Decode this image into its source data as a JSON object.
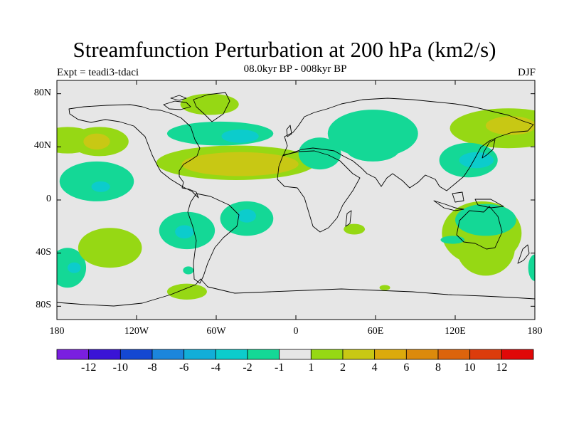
{
  "title": "Streamfunction Perturbation at 200 hPa (km2/s)",
  "subtitle": "08.0kyr BP - 008kyr BP",
  "expt": "Expt = teadi3-tdaci",
  "season": "DJF",
  "map": {
    "lon_range": [
      -180,
      180
    ],
    "lat_range": [
      -90,
      90
    ],
    "ocean_color": "#e6e6e6",
    "coast_color": "#000000",
    "lat_labels": [
      {
        "lat": 80,
        "text": "80N"
      },
      {
        "lat": 40,
        "text": "40N"
      },
      {
        "lat": 0,
        "text": "0"
      },
      {
        "lat": -40,
        "text": "40S"
      },
      {
        "lat": -80,
        "text": "80S"
      }
    ],
    "lon_labels": [
      {
        "lon": -180,
        "text": "180"
      },
      {
        "lon": -120,
        "text": "120W"
      },
      {
        "lon": -60,
        "text": "60W"
      },
      {
        "lon": 0,
        "text": "0"
      },
      {
        "lon": 60,
        "text": "60E"
      },
      {
        "lon": 120,
        "text": "120E"
      },
      {
        "lon": 180,
        "text": "180"
      }
    ]
  },
  "colorbar": {
    "colors": [
      "#7a1fe0",
      "#3a14d6",
      "#1448d2",
      "#1c86dc",
      "#12aed8",
      "#0ccccc",
      "#14d896",
      "#e6e6e6",
      "#96d814",
      "#c8c814",
      "#dcaa0c",
      "#dc8a0c",
      "#dc640c",
      "#dc3c0c",
      "#e00808"
    ],
    "labels": [
      "-12",
      "-10",
      "-8",
      "-6",
      "-4",
      "-2",
      "-1",
      "1",
      "2",
      "4",
      "6",
      "8",
      "10",
      "12"
    ]
  },
  "anomalies": [
    {
      "lon": -172,
      "lat": 45,
      "rx": 22,
      "ry": 10,
      "level": 8
    },
    {
      "lon": -148,
      "lat": 44,
      "rx": 22,
      "ry": 11,
      "level": 8
    },
    {
      "lon": -150,
      "lat": 44,
      "rx": 10,
      "ry": 6,
      "level": 9
    },
    {
      "lon": -150,
      "lat": 14,
      "rx": 28,
      "ry": 15,
      "level": 6
    },
    {
      "lon": -147,
      "lat": 10,
      "rx": 7,
      "ry": 4,
      "level": 5
    },
    {
      "lon": -172,
      "lat": -51,
      "rx": 14,
      "ry": 15,
      "level": 6
    },
    {
      "lon": -167,
      "lat": -51,
      "rx": 5,
      "ry": 4,
      "level": 5
    },
    {
      "lon": -140,
      "lat": -36,
      "rx": 24,
      "ry": 15,
      "level": 8
    },
    {
      "lon": -82,
      "lat": -23,
      "rx": 21,
      "ry": 14,
      "level": 6
    },
    {
      "lon": -84,
      "lat": -24,
      "rx": 7,
      "ry": 5,
      "level": 5
    },
    {
      "lon": -37,
      "lat": -14,
      "rx": 20,
      "ry": 13,
      "level": 6
    },
    {
      "lon": -37,
      "lat": -12,
      "rx": 7,
      "ry": 5,
      "level": 5
    },
    {
      "lon": -82,
      "lat": -69,
      "rx": 15,
      "ry": 6,
      "level": 8
    },
    {
      "lon": -81,
      "lat": -53,
      "rx": 4,
      "ry": 3,
      "level": 6
    },
    {
      "lon": -65,
      "lat": 72,
      "rx": 22,
      "ry": 8,
      "level": 8
    },
    {
      "lon": -57,
      "lat": 50,
      "rx": 40,
      "ry": 9,
      "level": 6
    },
    {
      "lon": -42,
      "lat": 48,
      "rx": 14,
      "ry": 5,
      "level": 5
    },
    {
      "lon": -45,
      "lat": 28,
      "rx": 60,
      "ry": 13,
      "level": 8
    },
    {
      "lon": -42,
      "lat": 27,
      "rx": 44,
      "ry": 9,
      "level": 9
    },
    {
      "lon": 18,
      "lat": 35,
      "rx": 16,
      "ry": 12,
      "level": 6
    },
    {
      "lon": 58,
      "lat": 50,
      "rx": 34,
      "ry": 18,
      "level": 6
    },
    {
      "lon": 58,
      "lat": 38,
      "rx": 20,
      "ry": 9,
      "level": 6
    },
    {
      "lon": 44,
      "lat": -22,
      "rx": 8,
      "ry": 4,
      "level": 8
    },
    {
      "lon": 67,
      "lat": -66,
      "rx": 4,
      "ry": 2,
      "level": 8
    },
    {
      "lon": 160,
      "lat": 54,
      "rx": 44,
      "ry": 15,
      "level": 8
    },
    {
      "lon": 162,
      "lat": 56,
      "rx": 19,
      "ry": 7,
      "level": 9
    },
    {
      "lon": 130,
      "lat": 30,
      "rx": 22,
      "ry": 13,
      "level": 6
    },
    {
      "lon": 136,
      "lat": 30,
      "rx": 13,
      "ry": 6,
      "level": 5
    },
    {
      "lon": 140,
      "lat": -25,
      "rx": 30,
      "ry": 24,
      "level": 8
    },
    {
      "lon": 143,
      "lat": -36,
      "rx": 22,
      "ry": 21,
      "level": 8
    },
    {
      "lon": 143,
      "lat": -15,
      "rx": 23,
      "ry": 12,
      "level": 6
    },
    {
      "lon": 118,
      "lat": -30,
      "rx": 9,
      "ry": 3,
      "level": 6
    },
    {
      "lon": 180,
      "lat": -51,
      "rx": 5,
      "ry": 10,
      "level": 6
    }
  ]
}
